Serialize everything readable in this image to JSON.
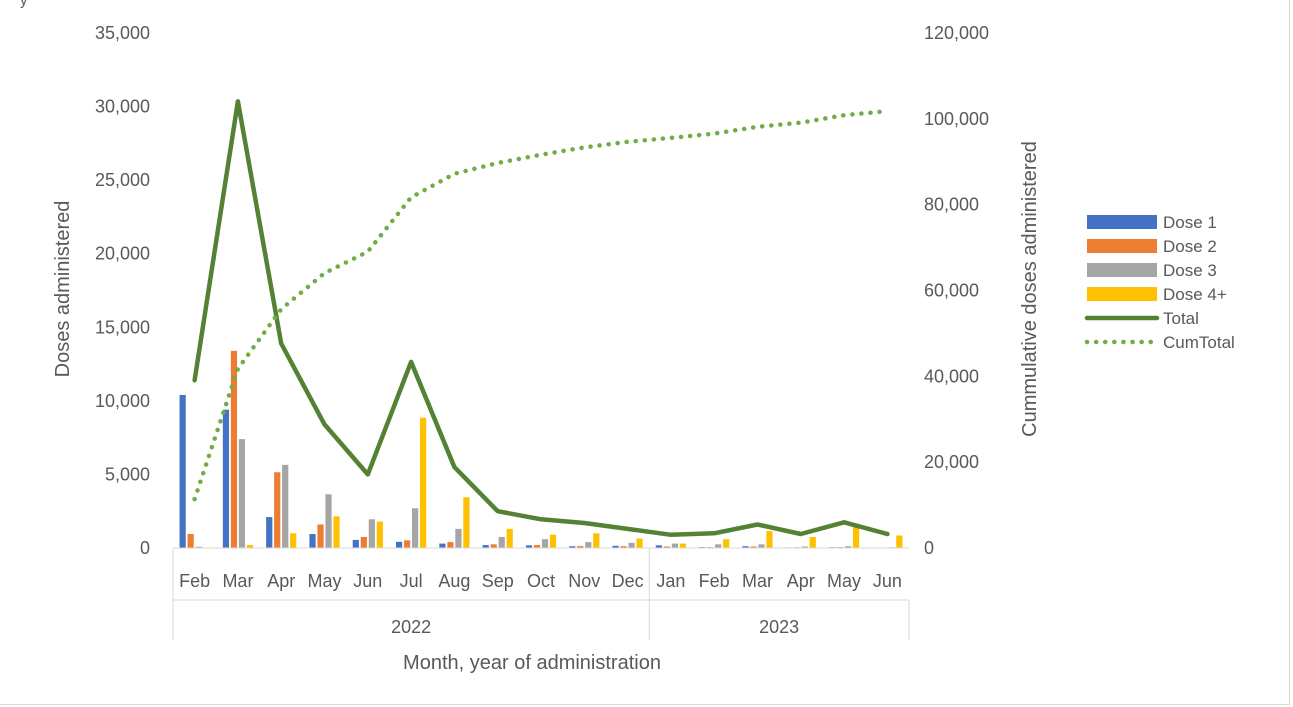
{
  "chart_data": {
    "type": "bar",
    "title": "",
    "title_fragment": "y",
    "xlabel": "Month, year of administration",
    "ylabel": "Doses administered",
    "y2label": "Cummulative doses administered",
    "ylim": [
      0,
      35000
    ],
    "y2lim": [
      0,
      120000
    ],
    "y_ticks": [
      "0",
      "5,000",
      "10,000",
      "15,000",
      "20,000",
      "25,000",
      "30,000",
      "35,000"
    ],
    "y2_ticks": [
      "0",
      "20,000",
      "40,000",
      "60,000",
      "80,000",
      "100,000",
      "120,000"
    ],
    "categories": [
      "Feb",
      "Mar",
      "Apr",
      "May",
      "Jun",
      "Jul",
      "Aug",
      "Sep",
      "Oct",
      "Nov",
      "Dec",
      "Jan",
      "Feb",
      "Mar",
      "Apr",
      "May",
      "Jun"
    ],
    "years": [
      {
        "label": "2022",
        "start": 0,
        "end": 10
      },
      {
        "label": "2023",
        "start": 11,
        "end": 16
      }
    ],
    "legend_position": "right",
    "grid": false,
    "series": [
      {
        "name": "Dose 1",
        "type": "bar",
        "axis": "left",
        "color": "#4472C4",
        "values": [
          10400,
          9400,
          2100,
          950,
          550,
          420,
          300,
          200,
          180,
          120,
          150,
          180,
          60,
          120,
          40,
          50,
          20
        ]
      },
      {
        "name": "Dose 2",
        "type": "bar",
        "axis": "left",
        "color": "#ED7D31",
        "values": [
          950,
          13400,
          5150,
          1600,
          750,
          520,
          400,
          250,
          200,
          130,
          120,
          100,
          60,
          100,
          50,
          60,
          30
        ]
      },
      {
        "name": "Dose 3",
        "type": "bar",
        "axis": "left",
        "color": "#A5A5A5",
        "values": [
          80,
          7400,
          5650,
          3650,
          1950,
          2700,
          1300,
          750,
          600,
          400,
          350,
          300,
          250,
          250,
          100,
          120,
          50
        ]
      },
      {
        "name": "Dose 4+",
        "type": "bar",
        "axis": "left",
        "color": "#FFC000",
        "values": [
          10,
          200,
          1000,
          2150,
          1800,
          8850,
          3450,
          1300,
          900,
          1000,
          650,
          300,
          600,
          1150,
          750,
          1500,
          850
        ]
      },
      {
        "name": "Total",
        "type": "line",
        "axis": "left",
        "color": "#548235",
        "style": "solid",
        "values": [
          11400,
          30350,
          13900,
          8400,
          5000,
          12650,
          5500,
          2500,
          1950,
          1700,
          1300,
          900,
          1000,
          1600,
          950,
          1750,
          950
        ]
      },
      {
        "name": "CumTotal",
        "type": "line",
        "axis": "right",
        "color": "#70AD47",
        "style": "dotted",
        "values": [
          11400,
          41750,
          55650,
          64050,
          69050,
          81700,
          87200,
          89700,
          91650,
          93350,
          94650,
          95550,
          96550,
          98150,
          99100,
          100850,
          101800
        ]
      }
    ]
  }
}
